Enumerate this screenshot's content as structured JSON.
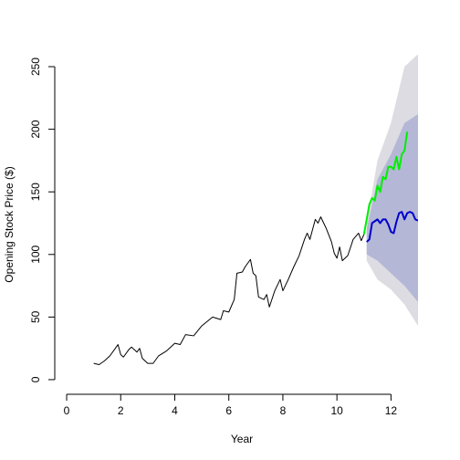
{
  "chart_data": {
    "type": "line",
    "x_label": "Year",
    "y_label": "Opening Stock Price ($)",
    "xlim": [
      -0.44,
      13.0
    ],
    "ylim": [
      -11.7,
      259.5
    ],
    "xticks": [
      0,
      2,
      4,
      6,
      8,
      10,
      12
    ],
    "yticks": [
      0,
      50,
      100,
      150,
      200,
      250
    ],
    "bands": [
      {
        "color": "#dcdce2",
        "x": [
          11.1,
          11.5,
          12.0,
          12.5,
          13.0
        ],
        "lower": [
          95,
          80,
          72,
          60,
          43
        ],
        "upper": [
          125,
          175,
          205,
          250,
          260
        ]
      },
      {
        "color": "#b4b8d6",
        "x": [
          11.1,
          11.5,
          12.0,
          12.5,
          13.0
        ],
        "lower": [
          100,
          95,
          85,
          75,
          62
        ],
        "upper": [
          120,
          160,
          180,
          205,
          212
        ]
      }
    ],
    "series": [
      {
        "color": "#000000",
        "width": 1,
        "x": [
          1.0,
          1.2,
          1.4,
          1.6,
          1.8,
          1.9,
          2.0,
          2.1,
          2.3,
          2.4,
          2.6,
          2.7,
          2.8,
          3.0,
          3.2,
          3.4,
          3.7,
          4.0,
          4.2,
          4.4,
          4.7,
          5.0,
          5.4,
          5.7,
          5.8,
          6.0,
          6.2,
          6.3,
          6.5,
          6.6,
          6.8,
          6.9,
          7.0,
          7.1,
          7.3,
          7.4,
          7.5,
          7.7,
          7.9,
          8.0,
          8.2,
          8.4,
          8.6,
          8.8,
          8.9,
          9.0,
          9.2,
          9.3,
          9.4,
          9.6,
          9.8,
          9.9,
          10.0,
          10.1,
          10.2,
          10.4,
          10.6,
          10.8,
          10.9,
          11.0
        ],
        "values": [
          13,
          12,
          15,
          19,
          25,
          28,
          20,
          18,
          24,
          26,
          22,
          25,
          17,
          13,
          13,
          19,
          23,
          29,
          28,
          36,
          35,
          43,
          50,
          48,
          55,
          54,
          64,
          85,
          86,
          90,
          96,
          85,
          83,
          66,
          64,
          68,
          58,
          71,
          80,
          71,
          80,
          90,
          99,
          112,
          117,
          112,
          128,
          125,
          130,
          121,
          110,
          101,
          97,
          106,
          95,
          99,
          112,
          117,
          111,
          116
        ]
      },
      {
        "color": "#00ee00",
        "width": 2,
        "x": [
          11.0,
          11.1,
          11.2,
          11.3,
          11.4,
          11.5,
          11.6,
          11.7,
          11.8,
          11.9,
          12.0,
          12.1,
          12.2,
          12.3,
          12.4,
          12.5,
          12.6
        ],
        "values": [
          116,
          128,
          140,
          145,
          143,
          155,
          150,
          162,
          160,
          170,
          170,
          168,
          178,
          168,
          180,
          183,
          198
        ]
      },
      {
        "color": "#0000cc",
        "width": 2,
        "x": [
          11.1,
          11.2,
          11.3,
          11.5,
          11.6,
          11.7,
          11.8,
          11.9,
          12.0,
          12.1,
          12.2,
          12.3,
          12.4,
          12.5,
          12.6,
          12.7,
          12.8,
          12.9,
          13.0
        ],
        "values": [
          110,
          112,
          125,
          128,
          125,
          128,
          128,
          124,
          118,
          117,
          126,
          133,
          134,
          128,
          133,
          134,
          133,
          128,
          127
        ]
      }
    ]
  }
}
